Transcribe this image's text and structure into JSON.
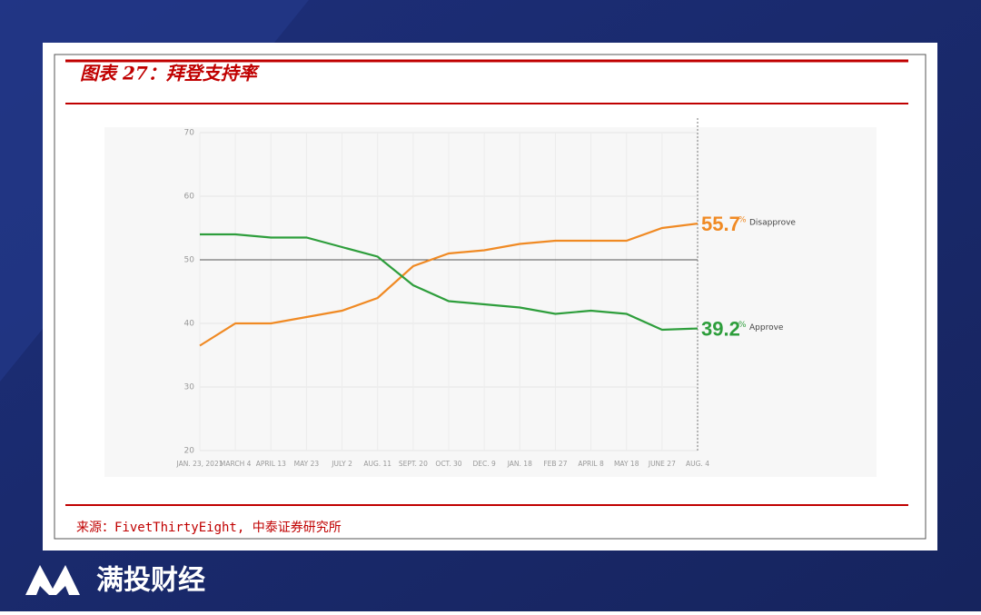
{
  "header": {
    "title": "图表 27：拜登支持率",
    "source": "来源：FivetThirtyEight, 中泰证券研究所",
    "brand": "满投财经"
  },
  "chart_data": {
    "type": "line",
    "categories": [
      "JAN. 23, 2021",
      "MARCH 4",
      "APRIL 13",
      "MAY 23",
      "JULY 2",
      "AUG. 11",
      "SEPT. 20",
      "OCT. 30",
      "DEC. 9",
      "JAN. 18",
      "FEB 27",
      "APRIL 8",
      "MAY 18",
      "JUNE 27",
      "AUG. 4"
    ],
    "series": [
      {
        "name": "Disapprove",
        "color": "#f08a24",
        "values": [
          36.5,
          40,
          40,
          41,
          42,
          44,
          49,
          51,
          51.5,
          52.5,
          53,
          53,
          53,
          55,
          55.7
        ]
      },
      {
        "name": "Approve",
        "color": "#2e9e3c",
        "values": [
          54,
          54,
          53.5,
          53.5,
          52,
          50.5,
          46,
          43.5,
          43,
          42.5,
          41.5,
          42,
          41.5,
          39,
          39.2
        ]
      }
    ],
    "unit": "%",
    "reference_line": 50,
    "ylim": [
      20,
      70
    ],
    "yticks": [
      20,
      30,
      40,
      50,
      60,
      70
    ],
    "grid": true
  }
}
